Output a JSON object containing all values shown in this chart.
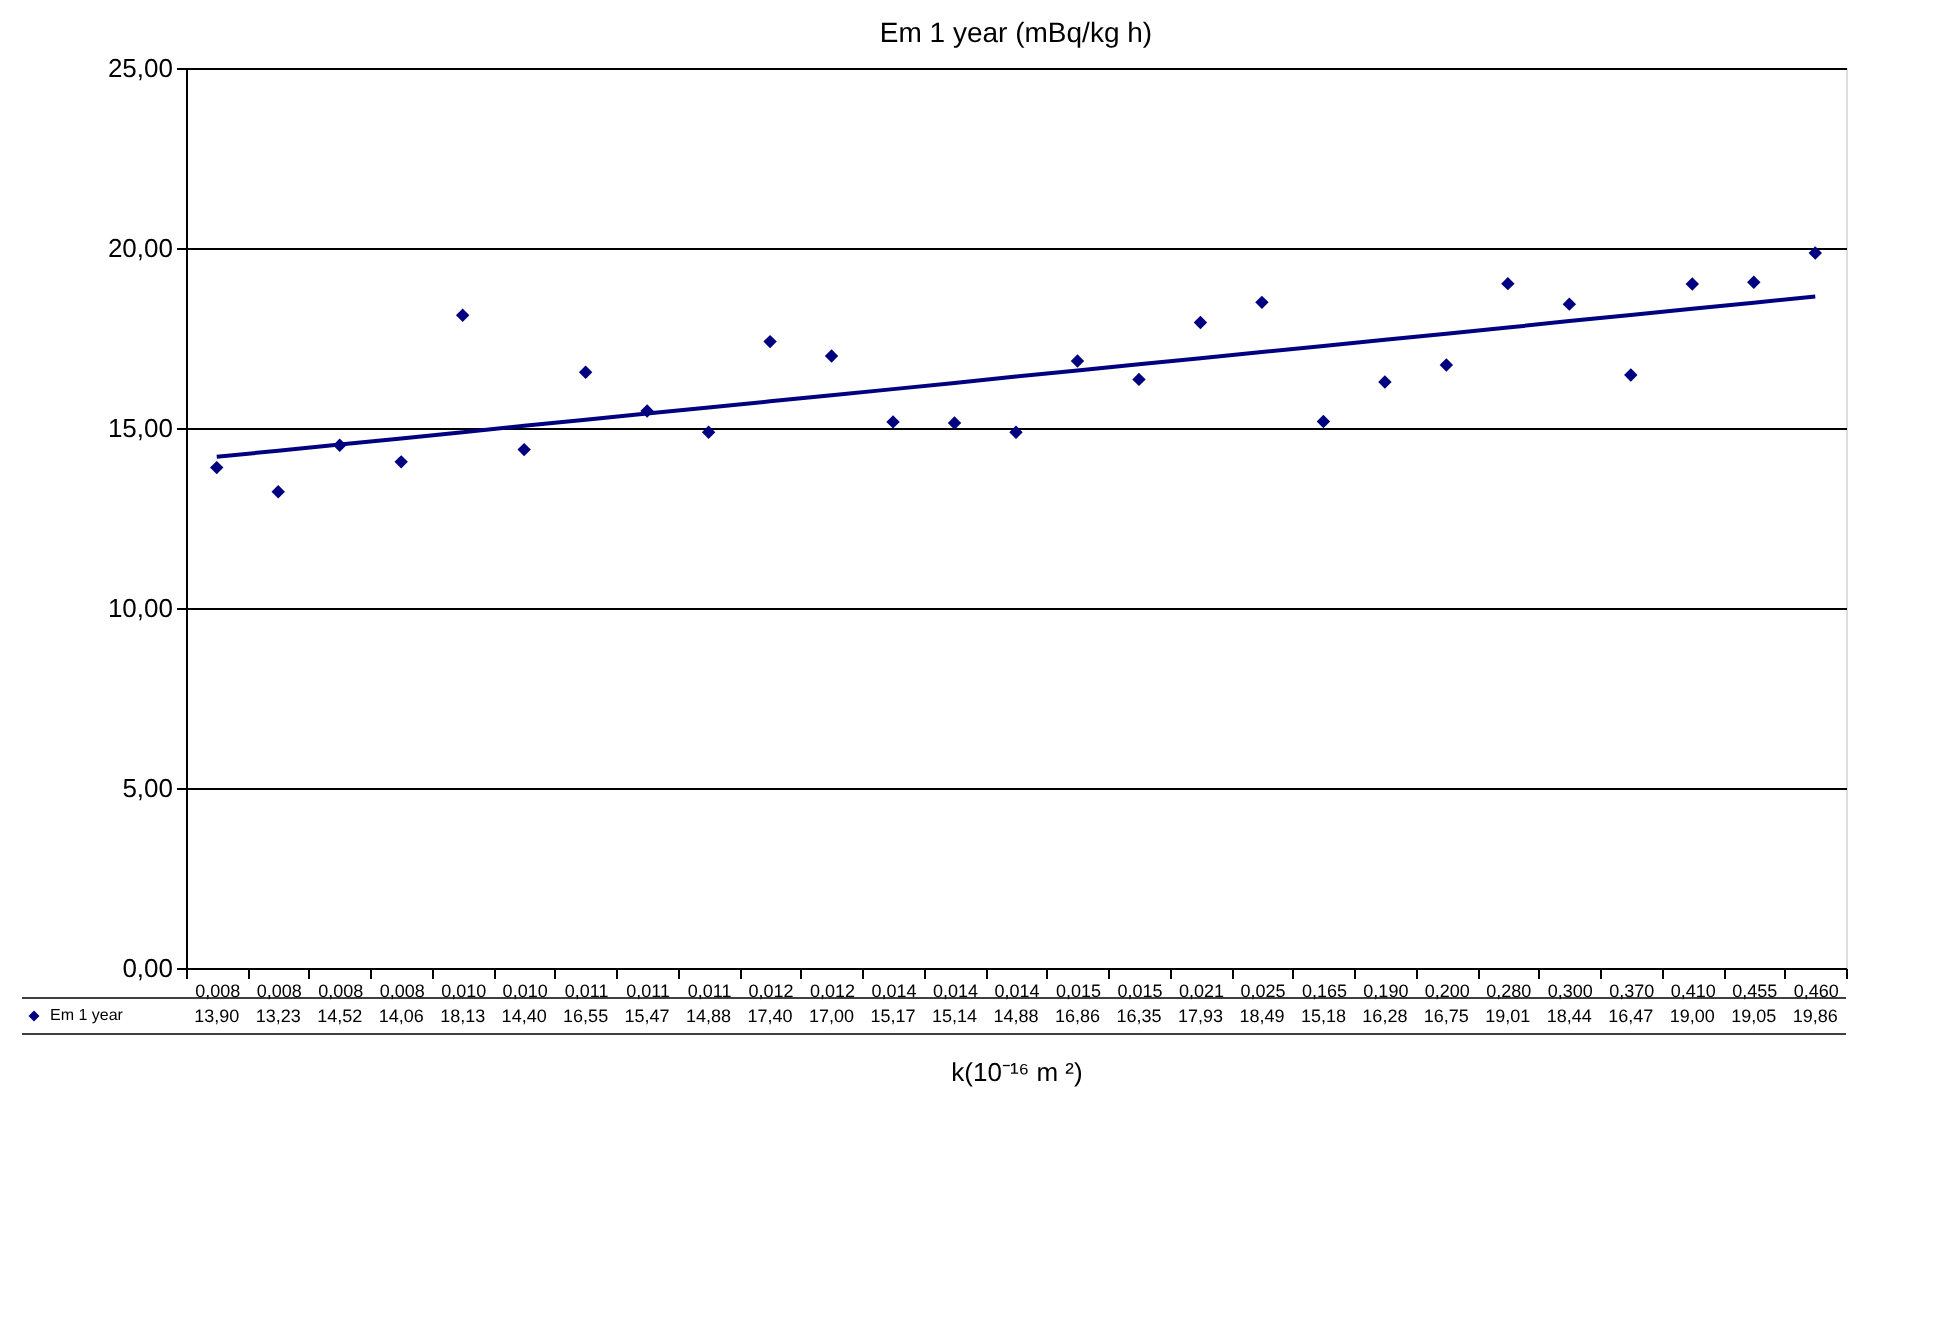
{
  "chart_data": {
    "type": "scatter",
    "title": "Em 1 year (mBq/kg h)",
    "xlabel": "k(10⁻¹⁶ m ²)",
    "categories": [
      "0,008",
      "0,008",
      "0,008",
      "0,008",
      "0,010",
      "0,010",
      "0,011",
      "0,011",
      "0,011",
      "0,012",
      "0,012",
      "0,014",
      "0,014",
      "0,014",
      "0,015",
      "0,015",
      "0,021",
      "0,025",
      "0,165",
      "0,190",
      "0,200",
      "0,280",
      "0,300",
      "0,370",
      "0,410",
      "0,455",
      "0,460"
    ],
    "series": [
      {
        "name": "Em 1 year",
        "color": "#000080",
        "marker": "diamond",
        "values": [
          13.9,
          13.23,
          14.52,
          14.06,
          18.13,
          14.4,
          16.55,
          15.47,
          14.88,
          17.4,
          17.0,
          15.17,
          15.14,
          14.88,
          16.86,
          16.35,
          17.93,
          18.49,
          15.18,
          16.28,
          16.75,
          19.01,
          18.44,
          16.47,
          19.0,
          19.05,
          19.86
        ],
        "value_labels": [
          "13,90",
          "13,23",
          "14,52",
          "14,06",
          "18,13",
          "14,40",
          "16,55",
          "15,47",
          "14,88",
          "17,40",
          "17,00",
          "15,17",
          "15,14",
          "14,88",
          "16,86",
          "16,35",
          "17,93",
          "18,49",
          "15,18",
          "16,28",
          "16,75",
          "19,01",
          "18,44",
          "16,47",
          "19,00",
          "19,05",
          "19,86"
        ]
      },
      {
        "type": "line",
        "color": "#000080",
        "line_style": "solid",
        "values": [
          14.2,
          14.37,
          14.54,
          14.71,
          14.88,
          15.06,
          15.23,
          15.4,
          15.57,
          15.74,
          15.91,
          16.08,
          16.25,
          16.43,
          16.6,
          16.77,
          16.94,
          17.11,
          17.28,
          17.45,
          17.62,
          17.79,
          17.97,
          18.14,
          18.31,
          18.48,
          18.65
        ]
      }
    ],
    "ylim": [
      0,
      25
    ],
    "yticks": [
      {
        "value": 0,
        "label": "0,00"
      },
      {
        "value": 5,
        "label": "5,00"
      },
      {
        "value": 10,
        "label": "10,00"
      },
      {
        "value": 15,
        "label": "15,00"
      },
      {
        "value": 20,
        "label": "20,00"
      },
      {
        "value": 25,
        "label": "25,00"
      }
    ],
    "grid": "y",
    "legend": "bottom"
  }
}
